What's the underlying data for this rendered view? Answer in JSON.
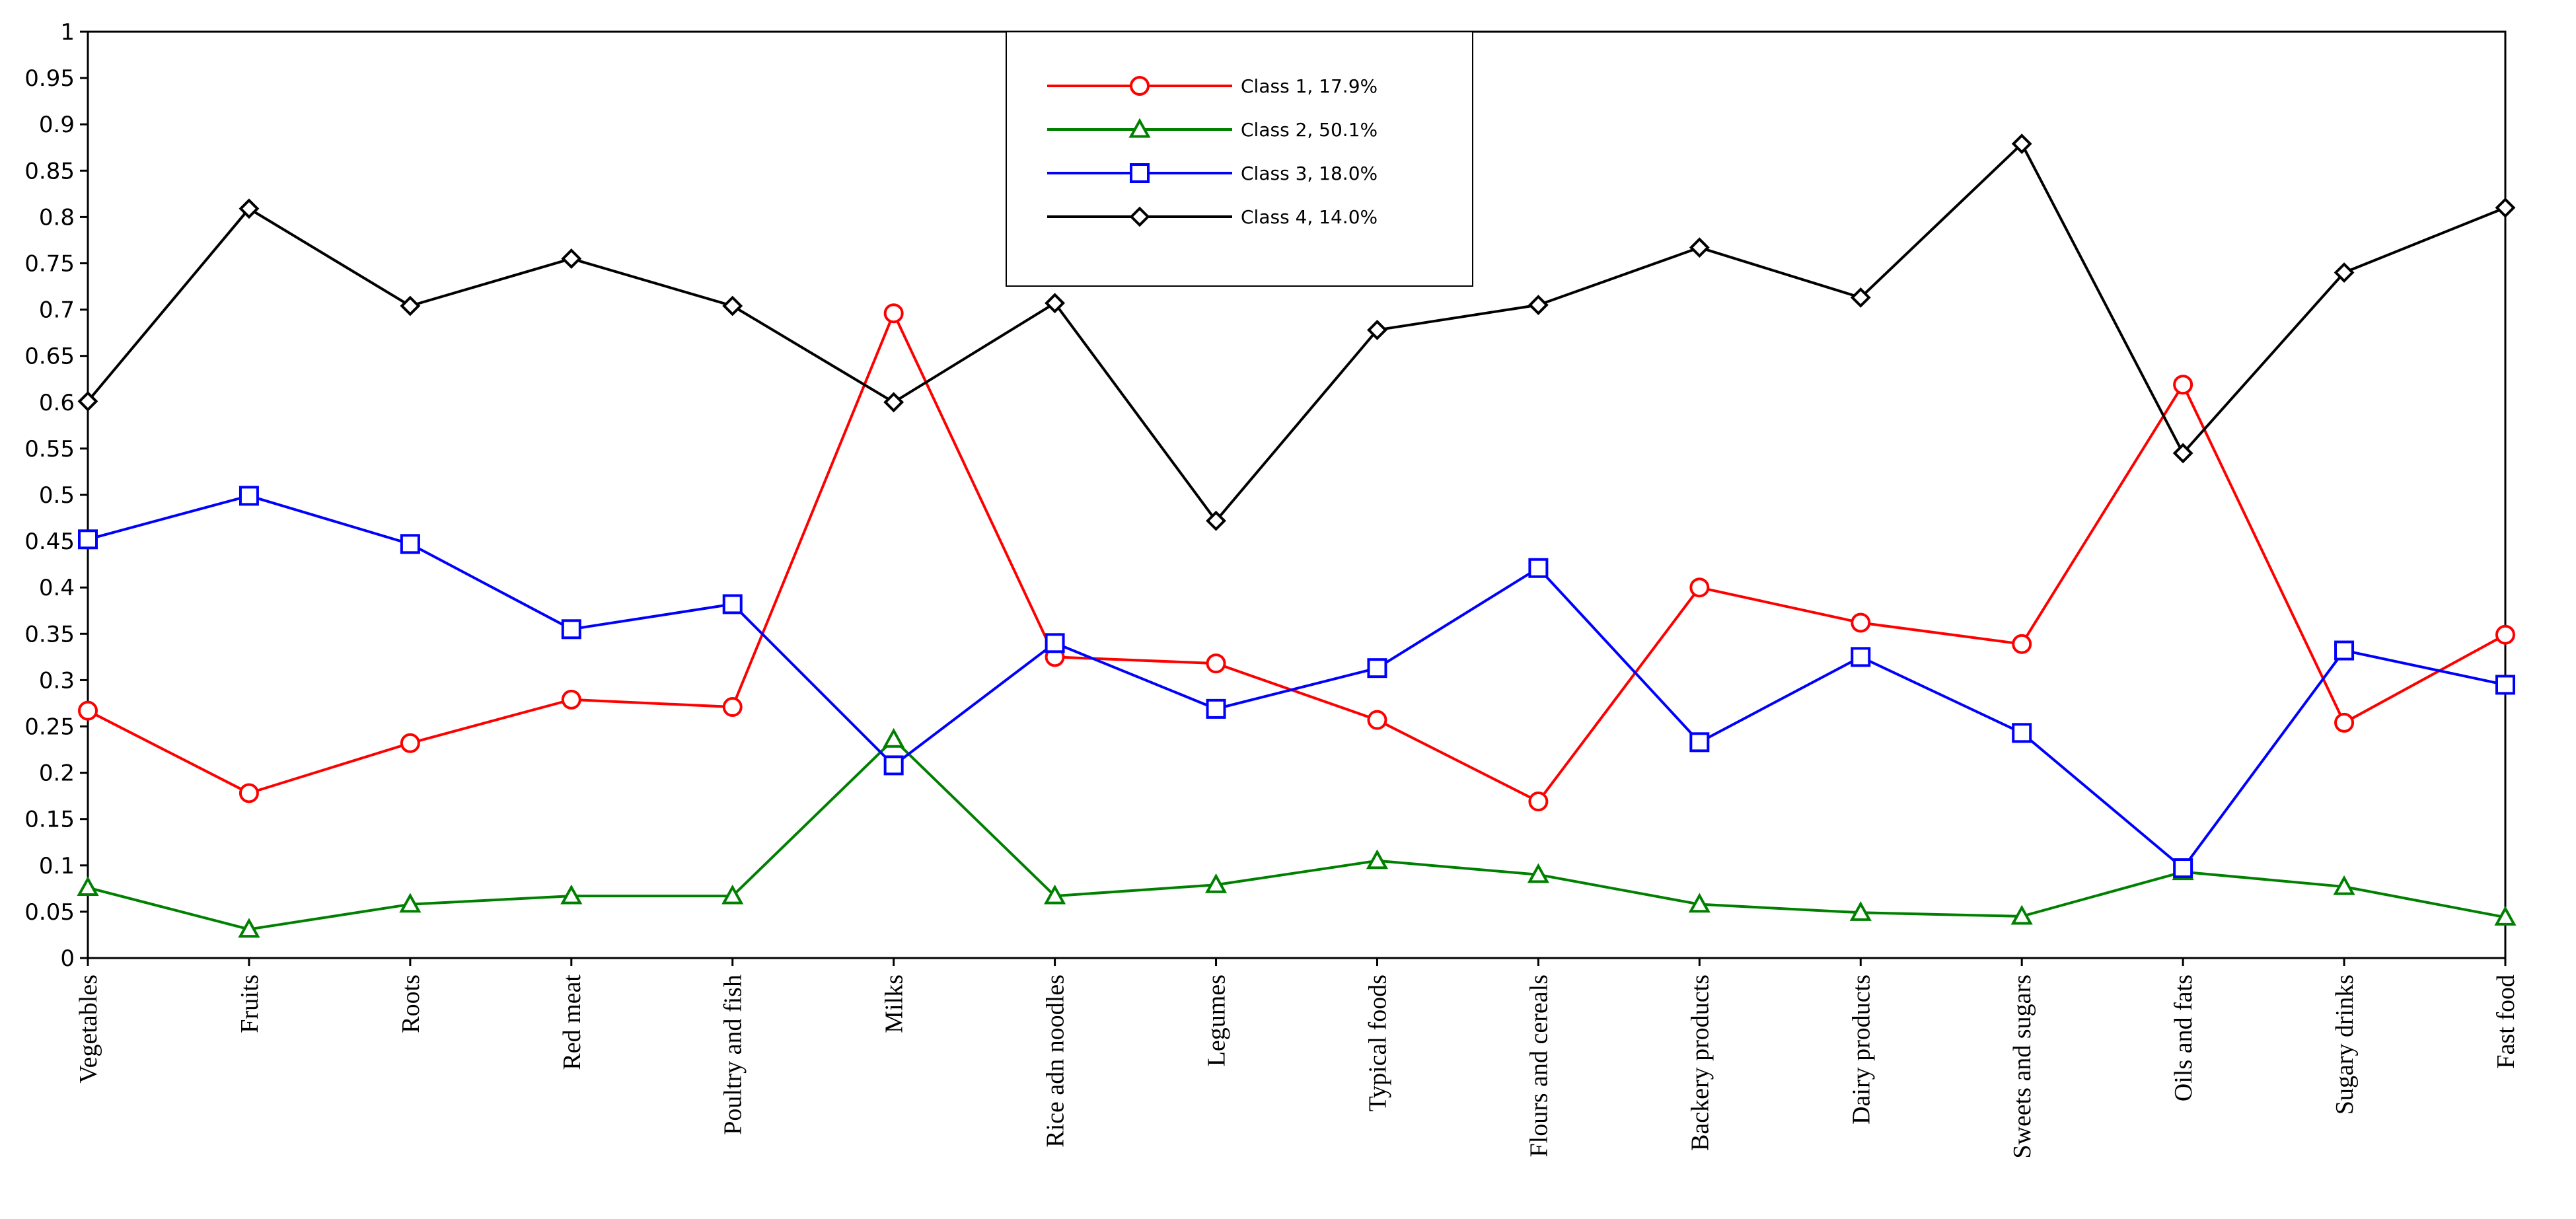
{
  "chart_data": {
    "type": "line",
    "title": "",
    "xlabel": "",
    "ylabel": "",
    "ylim": [
      0,
      1
    ],
    "yticks": [
      0,
      0.05,
      0.1,
      0.15,
      0.2,
      0.25,
      0.3,
      0.35,
      0.4,
      0.45,
      0.5,
      0.55,
      0.6,
      0.65,
      0.7,
      0.75,
      0.8,
      0.85,
      0.9,
      0.95,
      1
    ],
    "ytick_labels": [
      "0",
      "0.05",
      "0.1",
      "0.15",
      "0.2",
      "0.25",
      "0.3",
      "0.35",
      "0.4",
      "0.45",
      "0.5",
      "0.55",
      "0.6",
      "0.65",
      "0.7",
      "0.75",
      "0.8",
      "0.85",
      "0.9",
      "0.95",
      "1"
    ],
    "grid": false,
    "legend_position": "top-center",
    "categories": [
      "Vegetables",
      "Fruits",
      "Roots",
      "Red meat",
      "Poultry and fish",
      "Milks",
      "Rice adn noodles",
      "Legumes",
      "Typical foods",
      "Flours and cereals",
      "Backery products",
      "Dairy products",
      "Sweets and sugars",
      "Oils and fats",
      "Sugary drinks",
      "Fast food"
    ],
    "series": [
      {
        "name": "Class 1, 17.9%",
        "color": "#ff0000",
        "marker": "circle",
        "values": [
          0.267,
          0.178,
          0.232,
          0.279,
          0.271,
          0.696,
          0.325,
          0.318,
          0.257,
          0.169,
          0.4,
          0.362,
          0.339,
          0.619,
          0.254,
          0.349
        ]
      },
      {
        "name": "Class 2, 50.1%",
        "color": "#008000",
        "marker": "triangle",
        "values": [
          0.076,
          0.031,
          0.058,
          0.067,
          0.067,
          0.236,
          0.067,
          0.079,
          0.105,
          0.09,
          0.058,
          0.049,
          0.045,
          0.093,
          0.077,
          0.044
        ]
      },
      {
        "name": "Class 3, 18.0%",
        "color": "#0000ff",
        "marker": "square",
        "values": [
          0.452,
          0.499,
          0.447,
          0.355,
          0.382,
          0.208,
          0.34,
          0.269,
          0.313,
          0.421,
          0.233,
          0.325,
          0.243,
          0.097,
          0.332,
          0.295
        ]
      },
      {
        "name": "Class 4, 14.0%",
        "color": "#000000",
        "marker": "diamond",
        "values": [
          0.601,
          0.809,
          0.704,
          0.755,
          0.704,
          0.6,
          0.707,
          0.472,
          0.678,
          0.705,
          0.767,
          0.713,
          0.879,
          0.545,
          0.74,
          0.81
        ]
      }
    ]
  }
}
